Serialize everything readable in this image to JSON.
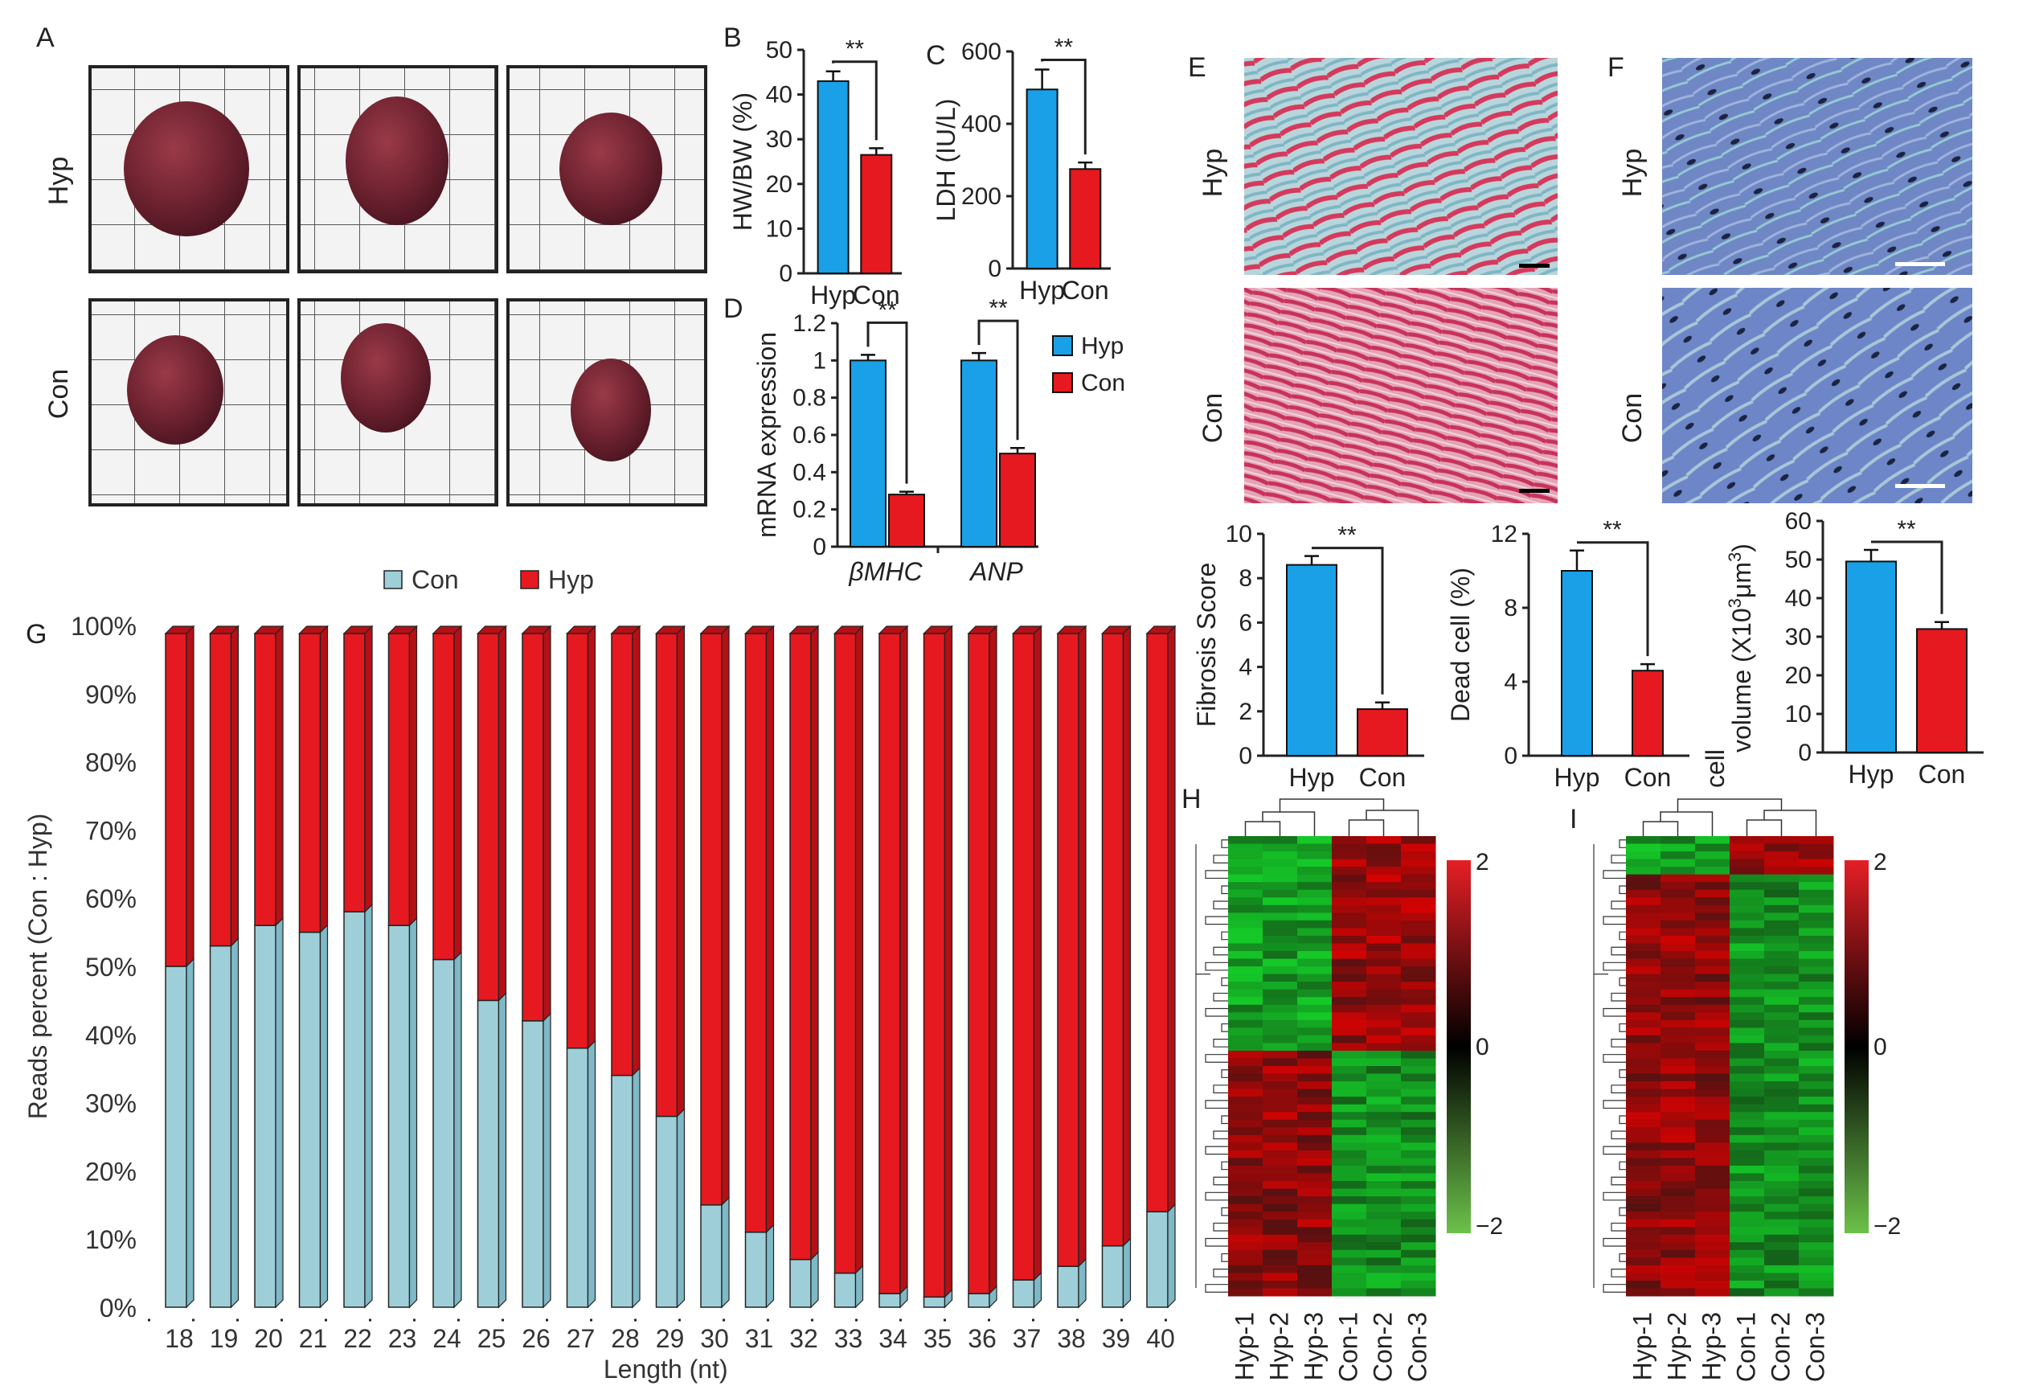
{
  "panels": {
    "A": "A",
    "B": "B",
    "C": "C",
    "D": "D",
    "E": "E",
    "F": "F",
    "G": "G",
    "H": "H",
    "I": "I"
  },
  "row_labels": {
    "hyp": "Hyp",
    "con": "Con"
  },
  "sig": "**",
  "colors": {
    "hyp": "#1aa0e6",
    "con": "#e5191f",
    "teal": "#9ecfd9",
    "teal_top": "#7fb8c6",
    "red_top": "#b51016"
  },
  "chart_data": [
    {
      "id": "B",
      "type": "bar",
      "categories": [
        "Hyp",
        "Con"
      ],
      "values": [
        43,
        26.5
      ],
      "errors": [
        2.2,
        1.5
      ],
      "ylabel": "HW/BW (%)",
      "ylim": [
        0,
        50
      ],
      "yticks": [
        "0",
        "10",
        "20",
        "30",
        "40",
        "50"
      ]
    },
    {
      "id": "C",
      "type": "bar",
      "categories": [
        "Hyp",
        "Con"
      ],
      "values": [
        495,
        275
      ],
      "errors": [
        55,
        18
      ],
      "ylabel": "LDH (IU/L)",
      "ylim": [
        0,
        600
      ],
      "yticks": [
        "0",
        "200",
        "400",
        "600"
      ]
    },
    {
      "id": "D",
      "type": "bar",
      "categories": [
        "βMHC",
        "ANP"
      ],
      "series": [
        {
          "name": "Hyp",
          "values": [
            1.0,
            1.0
          ],
          "errors": [
            0.03,
            0.04
          ]
        },
        {
          "name": "Con",
          "values": [
            0.28,
            0.5
          ],
          "errors": [
            0.015,
            0.03
          ]
        }
      ],
      "ylabel": "mRNA expression",
      "ylim": [
        0,
        1.2
      ],
      "yticks": [
        "0",
        "0.2",
        "0.4",
        "0.6",
        "0.8",
        "1",
        "1.2"
      ]
    },
    {
      "id": "E2",
      "type": "bar",
      "categories": [
        "Hyp",
        "Con"
      ],
      "values": [
        8.6,
        2.1
      ],
      "errors": [
        0.4,
        0.3
      ],
      "ylabel": "Fibrosis Score",
      "ylim": [
        0,
        10
      ],
      "yticks": [
        "0",
        "2",
        "4",
        "6",
        "8",
        "10"
      ]
    },
    {
      "id": "E3",
      "type": "bar",
      "categories": [
        "Hyp",
        "Con"
      ],
      "values": [
        10,
        4.6
      ],
      "errors": [
        1.1,
        0.35
      ],
      "ylabel": "Dead cell (%)",
      "ylim": [
        0,
        12
      ],
      "yticks": [
        "0",
        "4",
        "8",
        "12"
      ]
    },
    {
      "id": "F2",
      "type": "bar",
      "categories": [
        "Hyp",
        "Con"
      ],
      "values": [
        49.5,
        32
      ],
      "errors": [
        3,
        1.8
      ],
      "ylabel_line1": "cell",
      "ylabel_line2": "volume (X10",
      "ylabel_sup1": "3",
      "ylabel_mid": "μm",
      "ylabel_sup2": "3",
      "ylabel_end": ")",
      "ylim": [
        0,
        60
      ],
      "yticks": [
        "0",
        "10",
        "20",
        "30",
        "40",
        "50",
        "60"
      ]
    },
    {
      "id": "G",
      "type": "bar",
      "stacked": true,
      "categories": [
        "18",
        "19",
        "20",
        "21",
        "22",
        "23",
        "24",
        "25",
        "26",
        "27",
        "28",
        "29",
        "30",
        "31",
        "32",
        "33",
        "34",
        "35",
        "36",
        "37",
        "38",
        "39",
        "40"
      ],
      "series": [
        {
          "name": "Con",
          "values": [
            50,
            53,
            56,
            55,
            58,
            56,
            51,
            45,
            42,
            38,
            34,
            28,
            15,
            11,
            7,
            5,
            2,
            1.5,
            2,
            4,
            6,
            9,
            14
          ]
        },
        {
          "name": "Hyp",
          "values": [
            50,
            47,
            44,
            45,
            42,
            44,
            49,
            55,
            58,
            62,
            66,
            72,
            85,
            89,
            93,
            95,
            98,
            98.5,
            98,
            96,
            94,
            91,
            86
          ]
        }
      ],
      "xlabel": "Length (nt)",
      "ylabel": "Reads percent (Con : Hyp)",
      "ylim": [
        0,
        100
      ],
      "yticks": [
        "0%",
        "10%",
        "20%",
        "30%",
        "40%",
        "50%",
        "60%",
        "70%",
        "80%",
        "90%",
        "100%"
      ]
    },
    {
      "id": "H",
      "type": "heatmap",
      "columns": [
        "Hyp-1",
        "Hyp-2",
        "Hyp-3",
        "Con-1",
        "Con-2",
        "Con-3"
      ],
      "color_scale": {
        "max": "2",
        "mid": "0",
        "min": "−2"
      }
    },
    {
      "id": "I",
      "type": "heatmap",
      "columns": [
        "Hyp-1",
        "Hyp-2",
        "Hyp-3",
        "Con-1",
        "Con-2",
        "Con-3"
      ],
      "color_scale": {
        "max": "2",
        "mid": "0",
        "min": "−2"
      }
    }
  ]
}
